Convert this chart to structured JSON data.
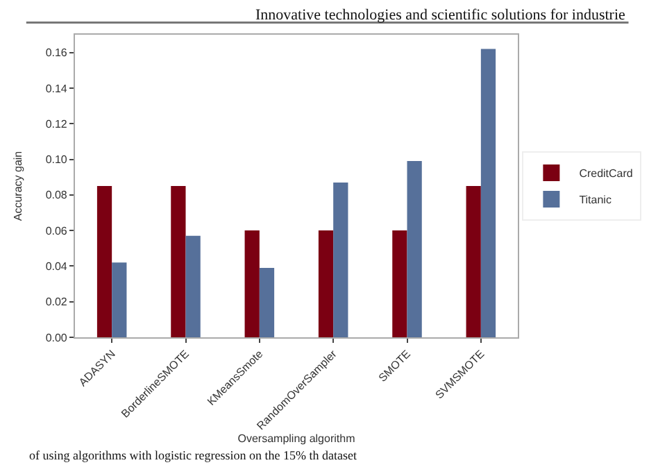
{
  "chart_data": {
    "type": "bar",
    "xlabel": "Oversampling algorithm",
    "ylabel": "Accuracy gain",
    "annotations": [
      "Innovative technologies and scientific solutions for industrie",
      "of using algorithms with logistic regression on the 15% th dataset"
    ],
    "categories": [
      "ADASYN",
      "BorderlineSMOTE",
      "KMeansSmote",
      "RandomOverSampler",
      "SMOTE",
      "SVMSMOTE"
    ],
    "series": [
      {
        "name": "CreditCard",
        "color": "#7b0012",
        "values": [
          0.085,
          0.085,
          0.06,
          0.06,
          0.06,
          0.085
        ]
      },
      {
        "name": "Titanic",
        "color": "#56709a",
        "values": [
          0.042,
          0.057,
          0.039,
          0.087,
          0.099,
          0.162
        ]
      }
    ],
    "ylim": [
      0,
      0.17
    ],
    "yticks": [
      {
        "value": 0,
        "label": "0.00"
      },
      {
        "value": 0.02,
        "label": "0.02"
      },
      {
        "value": 0.04,
        "label": "0.04"
      },
      {
        "value": 0.06,
        "label": "0.06"
      },
      {
        "value": 0.08,
        "label": "0.08"
      },
      {
        "value": 0.1,
        "label": "0.10"
      },
      {
        "value": 0.12,
        "label": "0.12"
      },
      {
        "value": 0.14,
        "label": "0.14"
      },
      {
        "value": 0.16,
        "label": "0.16"
      }
    ],
    "legend": "right"
  }
}
